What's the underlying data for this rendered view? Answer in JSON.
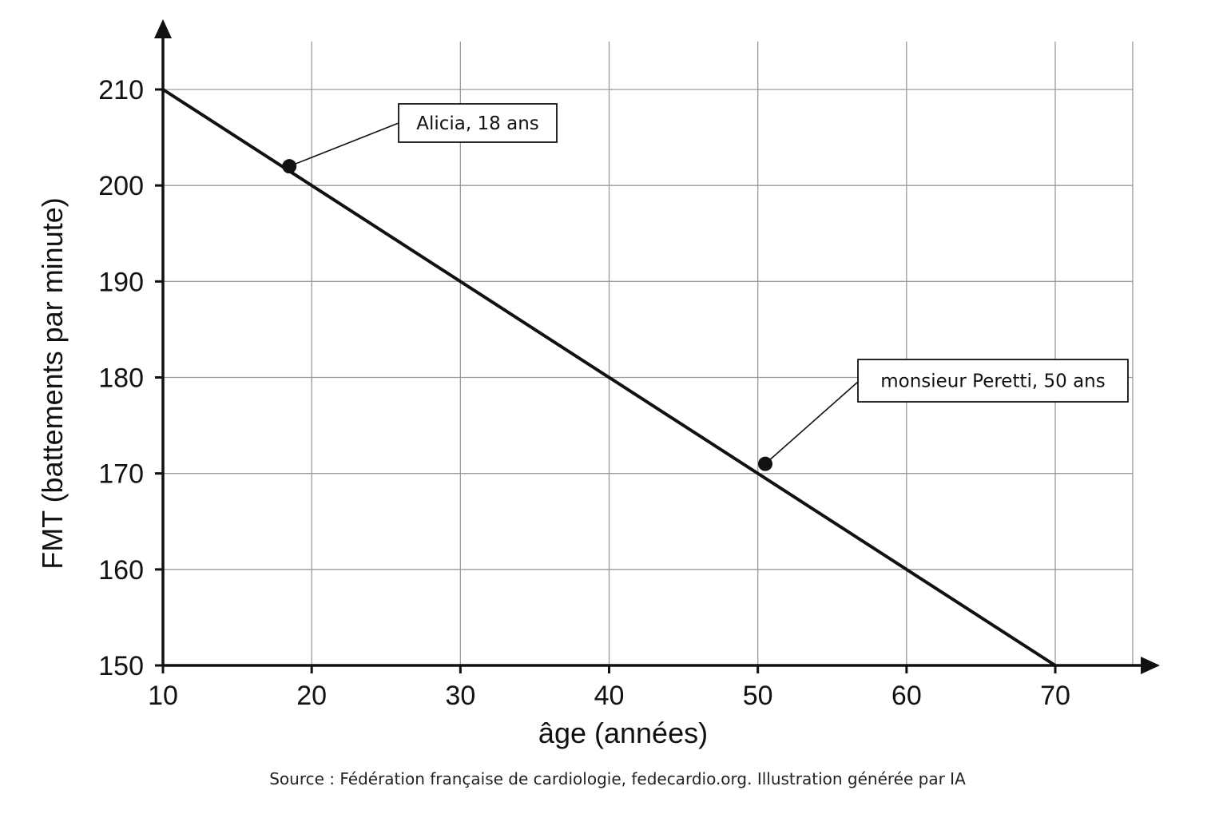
{
  "chart_data": {
    "type": "line",
    "title": "",
    "xlabel": "âge (années)",
    "ylabel": "FMT (battements par minute)",
    "xlim": [
      10,
      75
    ],
    "ylim": [
      150,
      215
    ],
    "x_ticks": [
      10,
      20,
      30,
      40,
      50,
      60,
      70
    ],
    "y_ticks": [
      150,
      160,
      170,
      180,
      190,
      200,
      210
    ],
    "x_tick_labels": [
      "10",
      "20",
      "30",
      "40",
      "50",
      "60",
      "70"
    ],
    "y_tick_labels": [
      "150",
      "160",
      "170",
      "180",
      "190",
      "200",
      "210"
    ],
    "grid": true,
    "series": [
      {
        "x": [
          10,
          70
        ],
        "y": [
          210,
          150
        ]
      }
    ],
    "points": [
      {
        "x": 18.5,
        "y": 202,
        "label": "Alicia, 18 ans"
      },
      {
        "x": 50.5,
        "y": 171,
        "label": "monsieur Peretti, 50 ans"
      }
    ],
    "line_color": "#111111",
    "grid_color": "#9a9a9a"
  },
  "source": "Source : Fédération française de cardiologie, fedecardio.org. Illustration générée par IA"
}
